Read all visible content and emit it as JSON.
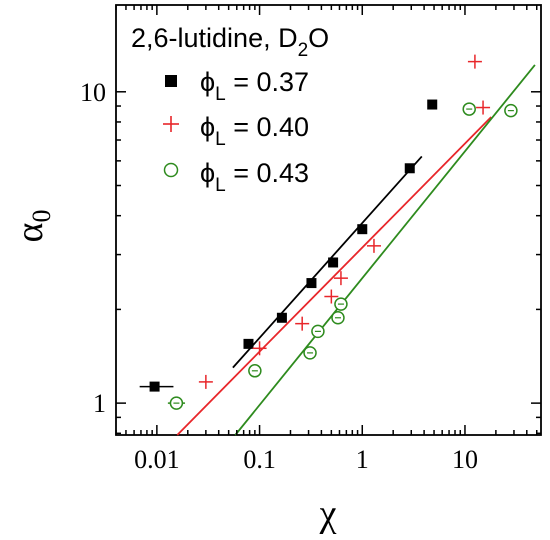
{
  "chart_data": {
    "type": "scatter",
    "annotation": "2,6-lutidine, D",
    "annotation_sub": "2",
    "annotation_tail": "O",
    "xlabel": "χ",
    "ylabel": "α",
    "ylabel_sub": "0",
    "xscale": "log",
    "yscale": "log",
    "xlim": [
      0.004,
      55
    ],
    "ylim": [
      0.79,
      19
    ],
    "grid": false,
    "legend_position": "top-left",
    "x_ticks": [
      {
        "value": 0.01,
        "label": "0.01"
      },
      {
        "value": 0.1,
        "label": "0.1"
      },
      {
        "value": 1,
        "label": "1"
      },
      {
        "value": 10,
        "label": "10"
      }
    ],
    "y_ticks": [
      {
        "value": 1,
        "label": "1"
      },
      {
        "value": 10,
        "label": "10"
      }
    ],
    "series": [
      {
        "name": "ϕ",
        "name_sub": "L",
        "name_tail": " = 0.37",
        "marker": "square",
        "color": "#000000",
        "points": [
          {
            "x": 0.0095,
            "y": 1.13,
            "xerr": [
              0.0068,
              0.0145
            ]
          },
          {
            "x": 0.078,
            "y": 1.55
          },
          {
            "x": 0.165,
            "y": 1.88
          },
          {
            "x": 0.32,
            "y": 2.43
          },
          {
            "x": 0.52,
            "y": 2.83
          },
          {
            "x": 1.0,
            "y": 3.62
          },
          {
            "x": 2.9,
            "y": 5.68
          },
          {
            "x": 4.8,
            "y": 9.1
          }
        ],
        "fit": {
          "x": [
            0.055,
            3.8
          ],
          "y": [
            1.3,
            6.2
          ]
        }
      },
      {
        "name": "ϕ",
        "name_sub": "L",
        "name_tail": " = 0.40",
        "marker": "plus",
        "color": "#e8262a",
        "points": [
          {
            "x": 0.03,
            "y": 1.17
          },
          {
            "x": 0.1,
            "y": 1.5
          },
          {
            "x": 0.26,
            "y": 1.8
          },
          {
            "x": 0.5,
            "y": 2.2
          },
          {
            "x": 0.62,
            "y": 2.52
          },
          {
            "x": 1.3,
            "y": 3.2
          },
          {
            "x": 12.5,
            "y": 12.5
          },
          {
            "x": 15.0,
            "y": 8.9
          }
        ],
        "fit": {
          "x": [
            0.0158,
            18
          ],
          "y": [
            0.79,
            8.3
          ]
        }
      },
      {
        "name": "ϕ",
        "name_sub": "L",
        "name_tail": " = 0.43",
        "marker": "circle",
        "color": "#2e8b1e",
        "points": [
          {
            "x": 0.0155,
            "y": 1.0,
            "xerr": [
              0.0128,
              0.0188
            ]
          },
          {
            "x": 0.09,
            "y": 1.27
          },
          {
            "x": 0.31,
            "y": 1.45
          },
          {
            "x": 0.37,
            "y": 1.7
          },
          {
            "x": 0.58,
            "y": 1.88
          },
          {
            "x": 0.62,
            "y": 2.08
          },
          {
            "x": 11.0,
            "y": 8.8,
            "xerr": [
              9.6,
              12.5
            ]
          },
          {
            "x": 28.0,
            "y": 8.7,
            "xerr": [
              25.0,
              31.0
            ]
          }
        ],
        "fit": {
          "x": [
            0.058,
            48
          ],
          "y": [
            0.79,
            12.2
          ]
        }
      }
    ]
  }
}
